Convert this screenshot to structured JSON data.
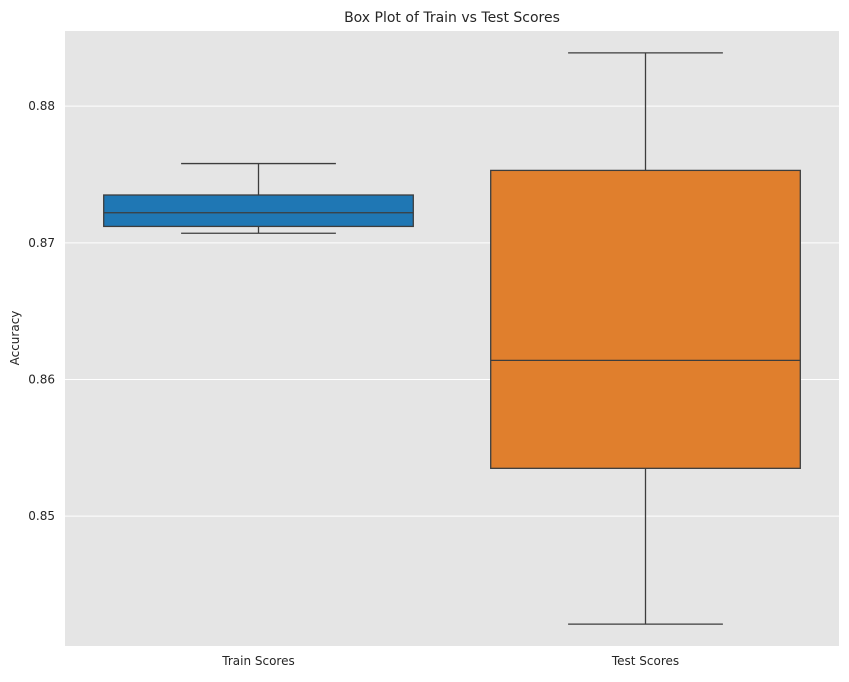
{
  "chart_data": {
    "type": "box",
    "title": "Box Plot of Train vs Test Scores",
    "xlabel": "",
    "ylabel": "Accuracy",
    "ylim": [
      0.8405,
      0.8855
    ],
    "yticks": [
      0.85,
      0.86,
      0.87,
      0.88
    ],
    "ytick_labels": [
      "0.85",
      "0.86",
      "0.87",
      "0.88"
    ],
    "grid": true,
    "categories": [
      "Train Scores",
      "Test Scores"
    ],
    "boxes": [
      {
        "category": "Train Scores",
        "color": "#1f77b4",
        "whisker_low": 0.8707,
        "q1": 0.8712,
        "median": 0.8722,
        "q3": 0.8735,
        "whisker_high": 0.8758
      },
      {
        "category": "Test Scores",
        "color": "#e07f2d",
        "whisker_low": 0.8421,
        "q1": 0.8535,
        "median": 0.8614,
        "q3": 0.8753,
        "whisker_high": 0.8839
      }
    ]
  }
}
